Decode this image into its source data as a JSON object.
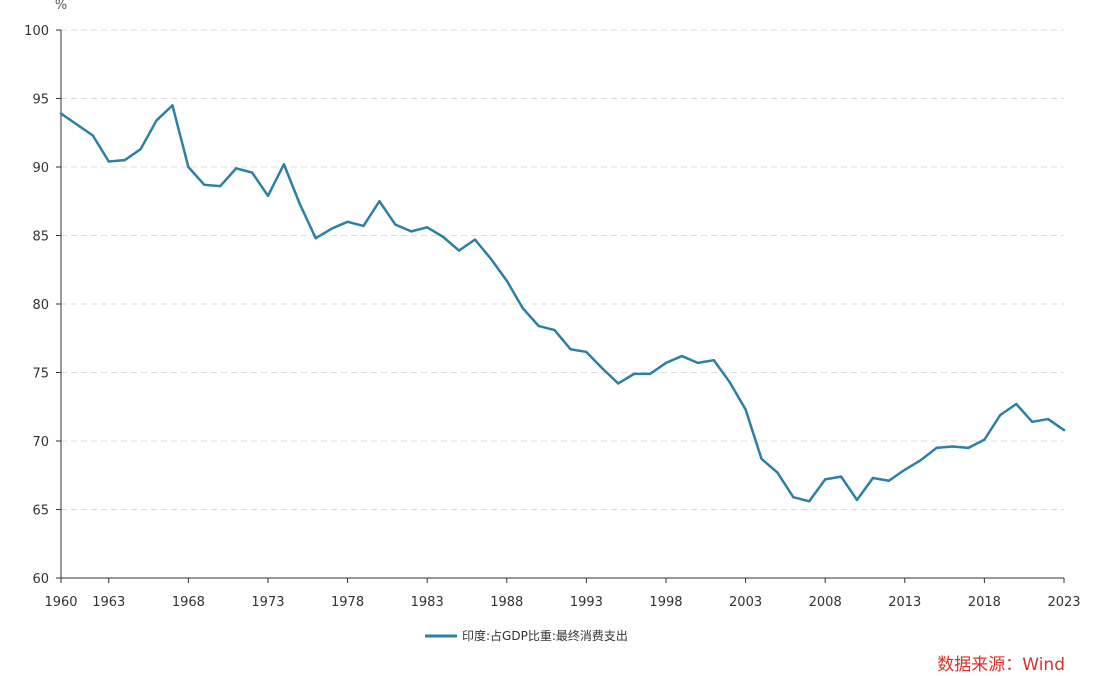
{
  "chart_data": {
    "type": "line",
    "title": "",
    "xlabel": "",
    "ylabel": "%",
    "ylim": [
      60,
      100
    ],
    "xlim": [
      1960,
      2023
    ],
    "y_ticks": [
      60,
      65,
      70,
      75,
      80,
      85,
      90,
      95,
      100
    ],
    "x_ticks": [
      1960,
      1963,
      1968,
      1973,
      1978,
      1983,
      1988,
      1993,
      1998,
      2003,
      2008,
      2013,
      2018,
      2023
    ],
    "grid": "horizontal dashed",
    "legend_position": "bottom-center",
    "x": [
      1960,
      1961,
      1962,
      1963,
      1964,
      1965,
      1966,
      1967,
      1968,
      1969,
      1970,
      1971,
      1972,
      1973,
      1974,
      1975,
      1976,
      1977,
      1978,
      1979,
      1980,
      1981,
      1982,
      1983,
      1984,
      1985,
      1986,
      1987,
      1988,
      1989,
      1990,
      1991,
      1992,
      1993,
      1994,
      1995,
      1996,
      1997,
      1998,
      1999,
      2000,
      2001,
      2002,
      2003,
      2004,
      2005,
      2006,
      2007,
      2008,
      2009,
      2010,
      2011,
      2012,
      2013,
      2014,
      2015,
      2016,
      2017,
      2018,
      2019,
      2020,
      2021,
      2022,
      2023
    ],
    "series": [
      {
        "name": "印度:占GDP比重:最终消费支出",
        "color": "#2e7fa5",
        "values": [
          93.9,
          93.1,
          92.3,
          90.4,
          90.5,
          91.3,
          93.4,
          94.5,
          90.0,
          88.7,
          88.6,
          89.9,
          89.6,
          87.9,
          90.2,
          87.3,
          84.8,
          85.5,
          86.0,
          85.7,
          87.5,
          85.8,
          85.3,
          85.6,
          84.9,
          83.9,
          84.7,
          83.3,
          81.7,
          79.7,
          78.4,
          78.1,
          76.7,
          76.5,
          75.3,
          74.2,
          74.9,
          74.9,
          75.7,
          76.2,
          75.7,
          75.9,
          74.3,
          72.3,
          68.7,
          67.7,
          65.9,
          65.6,
          67.2,
          67.4,
          65.7,
          67.3,
          67.1,
          67.9,
          68.6,
          69.5,
          69.6,
          69.5,
          70.1,
          71.9,
          72.7,
          71.4,
          71.6,
          70.8
        ]
      }
    ]
  },
  "source_label": "数据来源：Wind"
}
